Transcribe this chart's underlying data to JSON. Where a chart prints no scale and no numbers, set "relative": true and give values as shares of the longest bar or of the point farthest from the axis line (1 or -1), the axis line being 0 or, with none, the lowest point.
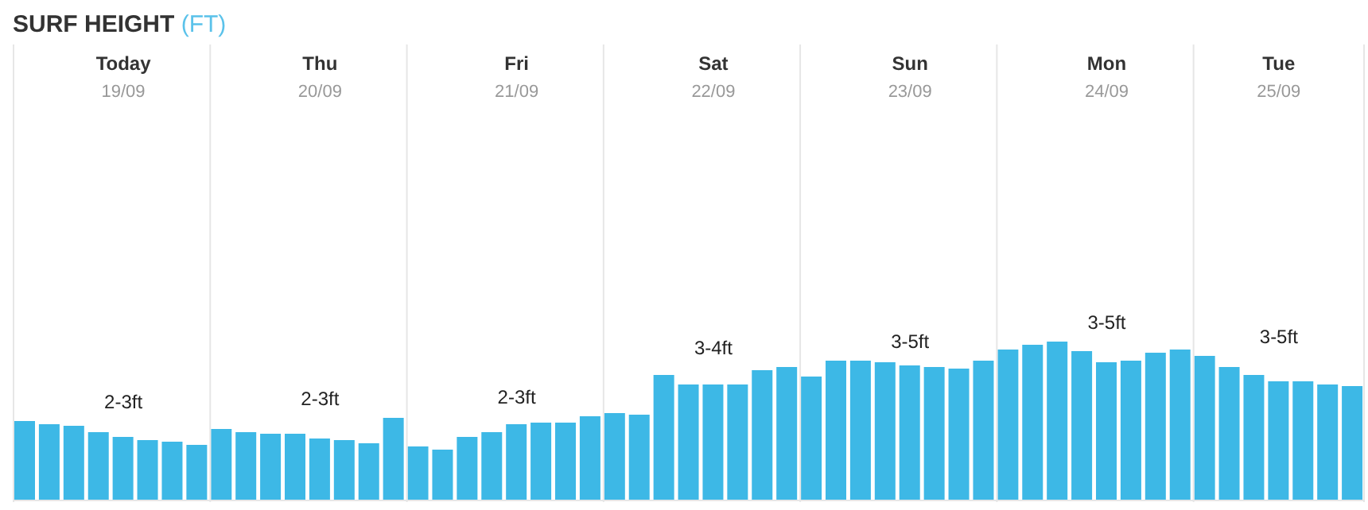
{
  "chart_data": {
    "type": "bar",
    "title": "SURF HEIGHT",
    "subtitle": "(FT)",
    "relative": true,
    "grid": "x",
    "categories": [
      null,
      null,
      null,
      null,
      "Today\n19/09",
      null,
      null,
      null,
      null,
      null,
      null,
      null,
      "Thu\n20/09",
      null,
      null,
      null,
      null,
      null,
      null,
      null,
      "Fri\n21/09",
      null,
      null,
      null,
      null,
      null,
      null,
      null,
      "Sat\n22/09",
      null,
      null,
      null,
      null,
      null,
      null,
      null,
      "Sun\n23/09",
      null,
      null,
      null,
      null,
      null,
      null,
      null,
      "Mon\n24/09",
      null,
      null,
      null,
      null,
      null,
      null,
      "Tue\n25/09",
      null,
      null,
      null
    ],
    "series": [
      {
        "color": "#3db8e6",
        "values": [
          0.5,
          0.48,
          0.47,
          0.43,
          0.4,
          0.38,
          0.37,
          0.35,
          0.45,
          0.43,
          0.42,
          0.42,
          0.39,
          0.38,
          0.36,
          0.52,
          0.34,
          0.32,
          0.4,
          0.43,
          0.48,
          0.49,
          0.49,
          0.53,
          0.55,
          0.54,
          0.79,
          0.73,
          0.73,
          0.73,
          0.82,
          0.84,
          0.78,
          0.88,
          0.88,
          0.87,
          0.85,
          0.84,
          0.83,
          0.88,
          0.95,
          0.98,
          1,
          0.94,
          0.87,
          0.88,
          0.93,
          0.95,
          0.91,
          0.84,
          0.79,
          0.75,
          0.75,
          0.73,
          0.72
        ]
      }
    ],
    "annotations": [
      "2-3ft",
      "2-3ft",
      "2-3ft",
      "3-4ft",
      "3-5ft",
      "3-5ft",
      "3-5ft"
    ]
  }
}
